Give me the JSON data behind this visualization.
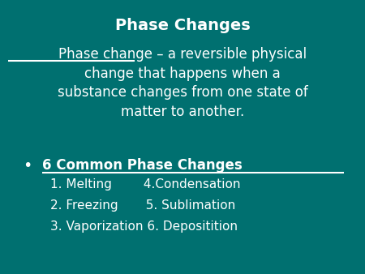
{
  "background_color": "#007070",
  "text_color": "#FFFFFF",
  "title": "Phase Changes",
  "title_fontsize": 14,
  "definition_underline_text": "Phase change",
  "definition_rest": " – a reversible physical\nchange that happens when a\nsubstance changes from one state of\nmatter to another.",
  "definition_fontsize": 12,
  "bullet_char": "•",
  "bullet_header": "6 Common Phase Changes",
  "bullet_header_fontsize": 12,
  "list_line1": "1. Melting        4.Condensation",
  "list_line2": "2. Freezing       5. Sublimation",
  "list_line3": "3. Vaporization 6. Depositition",
  "list_fontsize": 11,
  "fig_width": 4.5,
  "fig_height": 3.38,
  "dpi": 100
}
